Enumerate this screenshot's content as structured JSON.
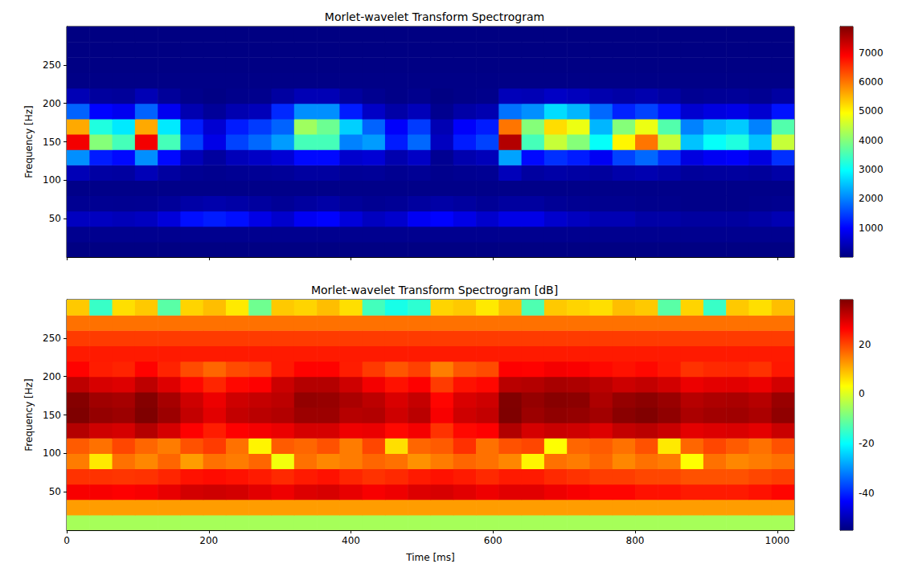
{
  "chart_data": [
    {
      "type": "heatmap",
      "title": "Morlet-wavelet Transform Spectrogram",
      "ylabel": "Frequency [Hz]",
      "tick_labels": "y",
      "xlim": [
        0,
        1024
      ],
      "xticks": [
        0,
        200,
        400,
        600,
        800,
        1000
      ],
      "ylim": [
        0,
        300
      ],
      "yticks": [
        50,
        100,
        150,
        200,
        250
      ],
      "x": [
        16,
        48,
        80,
        112,
        144,
        176,
        208,
        240,
        272,
        304,
        336,
        368,
        400,
        432,
        464,
        496,
        528,
        560,
        592,
        624,
        656,
        688,
        720,
        752,
        784,
        816,
        848,
        880,
        912,
        944,
        976,
        1008
      ],
      "y": [
        10,
        30,
        50,
        70,
        90,
        110,
        130,
        150,
        170,
        190,
        210,
        230,
        250,
        270,
        290
      ],
      "z": [
        [
          30,
          30,
          30,
          30,
          30,
          30,
          30,
          30,
          30,
          30,
          30,
          30,
          30,
          30,
          30,
          30,
          30,
          30,
          30,
          30,
          30,
          30,
          30,
          30,
          30,
          30,
          30,
          30,
          30,
          30,
          30,
          30
        ],
        [
          120,
          120,
          120,
          120,
          120,
          120,
          120,
          120,
          120,
          120,
          120,
          120,
          120,
          120,
          120,
          120,
          120,
          120,
          120,
          120,
          120,
          120,
          120,
          120,
          120,
          120,
          120,
          120,
          120,
          120,
          120,
          120
        ],
        [
          500,
          500,
          450,
          500,
          700,
          1100,
          1200,
          1100,
          800,
          600,
          900,
          1000,
          700,
          500,
          600,
          900,
          1000,
          800,
          600,
          800,
          800,
          600,
          500,
          400,
          400,
          300,
          300,
          250,
          250,
          250,
          300,
          400
        ],
        [
          150,
          150,
          140,
          150,
          200,
          300,
          350,
          300,
          250,
          180,
          250,
          300,
          200,
          150,
          180,
          250,
          300,
          250,
          180,
          250,
          250,
          180,
          150,
          120,
          120,
          100,
          100,
          80,
          80,
          80,
          100,
          120
        ],
        [
          80,
          80,
          80,
          80,
          80,
          80,
          80,
          80,
          80,
          80,
          80,
          80,
          80,
          80,
          80,
          80,
          80,
          80,
          80,
          80,
          80,
          80,
          80,
          80,
          80,
          80,
          80,
          80,
          80,
          80,
          80,
          80
        ],
        [
          430,
          280,
          255,
          430,
          255,
          155,
          120,
          155,
          170,
          190,
          255,
          255,
          180,
          190,
          140,
          170,
          105,
          140,
          155,
          455,
          255,
          305,
          280,
          230,
          330,
          380,
          305,
          205,
          230,
          240,
          205,
          305
        ],
        [
          2100,
          1200,
          1050,
          2100,
          1050,
          450,
          240,
          450,
          540,
          660,
          1050,
          1050,
          600,
          660,
          360,
          540,
          150,
          360,
          450,
          2250,
          1050,
          1350,
          1200,
          900,
          1500,
          1800,
          1350,
          750,
          900,
          960,
          750,
          1350
        ],
        [
          7000,
          4000,
          3500,
          7000,
          3500,
          1500,
          800,
          1500,
          1800,
          2200,
          3500,
          3500,
          2000,
          2200,
          1200,
          1800,
          500,
          1200,
          1500,
          7500,
          3500,
          4500,
          4000,
          3000,
          5000,
          6000,
          4500,
          2500,
          3000,
          3200,
          2500,
          4500
        ],
        [
          5600,
          3200,
          2800,
          5600,
          2800,
          1200,
          640,
          1200,
          1440,
          1760,
          4200,
          3800,
          2600,
          1760,
          960,
          1440,
          400,
          960,
          1200,
          6000,
          4000,
          5200,
          4800,
          2400,
          4000,
          4800,
          3600,
          2000,
          2400,
          2560,
          2000,
          3600
        ],
        [
          1750,
          1000,
          875,
          1750,
          875,
          375,
          200,
          375,
          450,
          1300,
          2100,
          2100,
          1200,
          550,
          300,
          450,
          125,
          300,
          375,
          1875,
          2100,
          2700,
          2400,
          1800,
          1250,
          1500,
          1125,
          625,
          750,
          800,
          625,
          1125
        ],
        [
          420,
          240,
          210,
          420,
          210,
          90,
          50,
          90,
          110,
          260,
          420,
          420,
          240,
          130,
          70,
          110,
          30,
          70,
          90,
          450,
          420,
          540,
          480,
          360,
          300,
          360,
          270,
          150,
          180,
          190,
          150,
          270
        ],
        [
          60,
          60,
          60,
          60,
          60,
          60,
          60,
          60,
          60,
          60,
          60,
          60,
          60,
          60,
          60,
          60,
          60,
          60,
          60,
          60,
          60,
          60,
          60,
          60,
          60,
          60,
          60,
          60,
          60,
          60,
          60,
          60
        ],
        [
          40,
          40,
          40,
          40,
          40,
          40,
          40,
          40,
          40,
          40,
          40,
          40,
          40,
          40,
          40,
          40,
          40,
          40,
          40,
          40,
          40,
          40,
          40,
          40,
          40,
          40,
          40,
          40,
          40,
          40,
          40,
          40
        ],
        [
          30,
          30,
          30,
          30,
          30,
          30,
          30,
          30,
          30,
          30,
          30,
          30,
          30,
          30,
          30,
          30,
          30,
          30,
          30,
          30,
          30,
          30,
          30,
          30,
          30,
          30,
          30,
          30,
          30,
          30,
          30,
          30
        ],
        [
          20,
          20,
          20,
          20,
          20,
          20,
          20,
          20,
          20,
          20,
          20,
          20,
          20,
          20,
          20,
          20,
          20,
          20,
          20,
          20,
          20,
          20,
          20,
          20,
          20,
          20,
          20,
          20,
          20,
          20,
          20,
          20
        ]
      ],
      "colorbar": {
        "range": [
          0,
          7900
        ],
        "ticks": [
          1000,
          2000,
          3000,
          4000,
          5000,
          6000,
          7000
        ]
      }
    },
    {
      "type": "heatmap",
      "title": "Morlet-wavelet Transform Spectrogram [dB]",
      "xlabel": "Time [ms]",
      "ylabel": "Frequency [Hz]",
      "xlim": [
        0,
        1024
      ],
      "xticks": [
        0,
        200,
        400,
        600,
        800,
        1000
      ],
      "ylim": [
        0,
        300
      ],
      "yticks": [
        50,
        100,
        150,
        200,
        250
      ],
      "x": [
        16,
        48,
        80,
        112,
        144,
        176,
        208,
        240,
        272,
        304,
        336,
        368,
        400,
        432,
        464,
        496,
        528,
        560,
        592,
        624,
        656,
        688,
        720,
        752,
        784,
        816,
        848,
        880,
        912,
        944,
        976,
        1008
      ],
      "y": [
        10,
        30,
        50,
        70,
        90,
        110,
        130,
        150,
        170,
        190,
        210,
        230,
        250,
        270,
        290
      ],
      "z": [
        [
          -5,
          -5,
          -5,
          -5,
          -5,
          -5,
          -5,
          -5,
          -5,
          -5,
          -5,
          -5,
          -5,
          -5,
          -5,
          -5,
          -5,
          -5,
          -5,
          -5,
          -5,
          -5,
          -5,
          -5,
          -5,
          -5,
          -5,
          -5,
          -5,
          -5,
          -5,
          -5
        ],
        [
          12,
          12,
          12,
          12,
          12,
          12,
          12,
          12,
          12,
          12,
          12,
          12,
          12,
          12,
          12,
          12,
          12,
          12,
          12,
          12,
          12,
          12,
          12,
          12,
          12,
          12,
          12,
          12,
          12,
          12,
          12,
          12
        ],
        [
          27,
          27,
          26.5,
          27,
          28.5,
          30.4,
          30.8,
          30.4,
          29,
          27.8,
          29.5,
          30,
          28.5,
          27,
          27.8,
          29.5,
          30,
          29,
          27.8,
          29,
          29,
          27.8,
          27,
          26,
          26,
          24.8,
          24.8,
          24,
          24,
          24,
          24.8,
          26
        ],
        [
          21.8,
          21.8,
          21.5,
          21.8,
          23,
          24.8,
          25.4,
          24.8,
          24,
          22.6,
          24,
          24.8,
          23,
          21.8,
          22.6,
          24,
          24.8,
          24,
          22.6,
          24,
          24,
          22.6,
          21.8,
          20.8,
          20.8,
          20,
          20,
          19,
          19,
          19,
          20,
          20.8
        ],
        [
          15,
          5,
          16,
          14,
          17,
          12,
          16,
          15,
          17,
          2,
          16,
          14,
          15,
          17,
          16,
          13,
          15,
          17,
          16,
          14,
          4,
          16,
          15,
          17,
          14,
          16,
          15,
          3,
          16,
          14,
          15,
          16
        ],
        [
          18,
          16,
          20,
          17,
          15,
          19,
          21,
          16,
          4,
          18,
          17,
          19,
          15,
          20,
          6,
          17,
          18,
          22,
          16,
          19,
          20,
          3,
          17,
          18,
          16,
          19,
          5,
          17,
          20,
          18,
          16,
          19
        ],
        [
          33.2,
          30.8,
          30.2,
          33.2,
          30.2,
          26.5,
          23.8,
          26.5,
          27.3,
          28.2,
          30.2,
          30.2,
          27.8,
          28.2,
          25.6,
          27.3,
          21.8,
          25.6,
          26.5,
          33.5,
          30.2,
          31.3,
          30.8,
          29.5,
          31.8,
          32.6,
          31.3,
          28.8,
          29.5,
          29.8,
          28.8,
          31.3
        ],
        [
          38.5,
          36,
          35.4,
          38.5,
          35.4,
          31.8,
          29,
          31.8,
          32.6,
          33.4,
          35.4,
          35.4,
          33,
          33.4,
          30.8,
          32.6,
          27,
          30.8,
          31.8,
          38.8,
          35.4,
          36.5,
          36,
          34.8,
          37,
          37.8,
          36.5,
          34,
          34.8,
          35,
          34,
          36.5
        ],
        [
          37.5,
          35,
          34.5,
          37.5,
          34.5,
          30.8,
          28,
          30.8,
          31.6,
          32.5,
          36.2,
          35.8,
          34.1,
          32.5,
          29.8,
          31.6,
          26,
          29.8,
          30.8,
          37.8,
          36,
          37.2,
          36.8,
          33.8,
          36,
          36.8,
          35.6,
          33,
          33.8,
          34.1,
          33,
          35.6
        ],
        [
          32.4,
          30,
          29.4,
          32.4,
          29.4,
          25.7,
          23,
          25.7,
          26.5,
          31.1,
          33.2,
          33.2,
          30.8,
          27.4,
          24.8,
          26.5,
          21,
          24.8,
          25.7,
          32.7,
          33.2,
          34.3,
          33.8,
          32.6,
          31,
          31.8,
          30.5,
          28,
          28.8,
          29,
          28,
          30.5
        ],
        [
          26.2,
          23.8,
          23.2,
          26.2,
          23.2,
          19.5,
          17,
          19.5,
          20.4,
          24.1,
          26.2,
          26.2,
          23.8,
          21.1,
          18.5,
          20.4,
          14.8,
          18.5,
          19.5,
          26.5,
          26.2,
          27.3,
          26.8,
          25.6,
          24.8,
          25.6,
          24.3,
          21.8,
          22.6,
          22.8,
          21.8,
          24.3
        ],
        [
          24,
          24,
          24,
          24,
          24,
          24,
          24,
          24,
          24,
          24,
          24,
          24,
          24,
          24,
          24,
          24,
          24,
          24,
          24,
          24,
          24,
          24,
          24,
          24,
          24,
          24,
          24,
          24,
          24,
          24,
          24,
          24
        ],
        [
          21,
          21,
          21,
          21,
          21,
          21,
          21,
          21,
          21,
          21,
          21,
          21,
          21,
          21,
          21,
          21,
          21,
          21,
          21,
          21,
          21,
          21,
          21,
          21,
          21,
          21,
          21,
          21,
          21,
          21,
          21,
          21
        ],
        [
          16,
          16,
          16,
          16,
          16,
          16,
          16,
          16,
          16,
          16,
          16,
          16,
          16,
          16,
          16,
          16,
          16,
          16,
          16,
          16,
          16,
          16,
          16,
          16,
          16,
          16,
          16,
          16,
          16,
          16,
          16,
          16
        ],
        [
          8,
          -15,
          6,
          8,
          -12,
          7,
          9,
          5,
          -10,
          8,
          7,
          9,
          6,
          -14,
          -18,
          -16,
          7,
          8,
          5,
          9,
          -13,
          8,
          7,
          6,
          9,
          8,
          -12,
          7,
          -15,
          8,
          6,
          9
        ]
      ],
      "colorbar": {
        "range": [
          -55,
          38
        ],
        "ticks": [
          -40,
          -20,
          0,
          20
        ]
      }
    }
  ]
}
